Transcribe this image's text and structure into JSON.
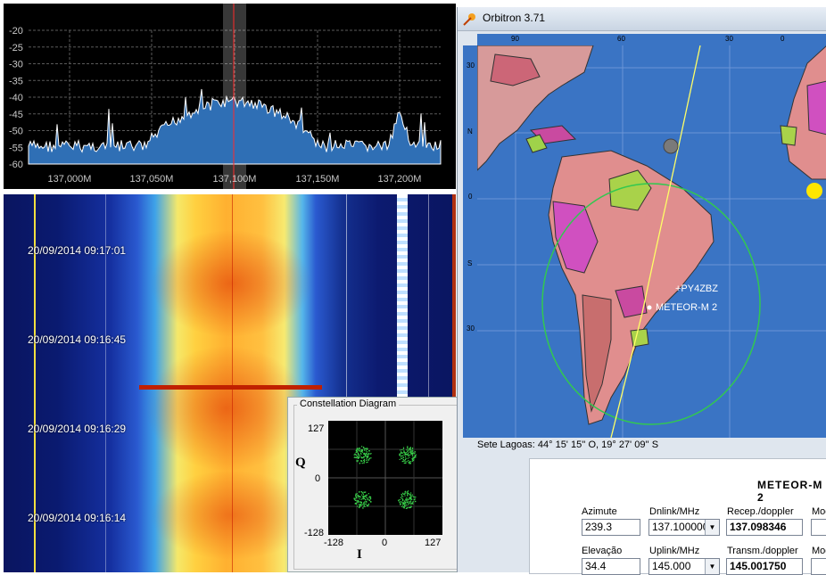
{
  "spectrum": {
    "y_ticks": [
      "-20",
      "-25",
      "-30",
      "-35",
      "-40",
      "-45",
      "-50",
      "-55",
      "-60"
    ],
    "x_ticks": [
      "137,000M",
      "137,050M",
      "137,100M",
      "137,150M",
      "137,200M"
    ],
    "colors": {
      "fill": "#2f6fb5",
      "grid": "#5a5a5a",
      "marker": "#ff2a2a"
    }
  },
  "waterfall": {
    "timestamps": [
      "20/09/2014 09:17:01",
      "20/09/2014 09:16:45",
      "20/09/2014 09:16:29",
      "20/09/2014 09:16:14"
    ]
  },
  "constellation": {
    "title": "Constellation Diagram",
    "q_label": "Q",
    "i_label": "I",
    "q_ticks": [
      "127",
      "0",
      "-128"
    ],
    "i_ticks": [
      "-128",
      "0",
      "127"
    ],
    "point_color": "#39d24a"
  },
  "orbitron": {
    "title": "Orbitron 3.71",
    "lon_ticks": [
      "90",
      "60",
      "30",
      "0"
    ],
    "lat_ticks": [
      "30",
      "N",
      "0",
      "S",
      "30"
    ],
    "map_labels": {
      "station": "+PY4ZBZ",
      "satellite": "METEOR-M 2"
    },
    "location": "Sete Lagoas: 44° 15' 15'' O, 19° 27' 09'' S",
    "panel": {
      "satellite_name": "METEOR-M 2",
      "azimuth_label": "Azimute",
      "azimuth_value": "239.3",
      "dnlink_label": "Dnlink/MHz",
      "dnlink_value": "137.100000",
      "recep_label": "Recep./doppler",
      "recep_value": "137.098346",
      "mode_label_1": "Mod",
      "elevation_label": "Elevação",
      "elevation_value": "34.4",
      "uplink_label": "Uplink/MHz",
      "uplink_value": "145.000",
      "transm_label": "Transm./doppler",
      "transm_value": "145.001750",
      "mode_label_2": "Mod"
    }
  }
}
